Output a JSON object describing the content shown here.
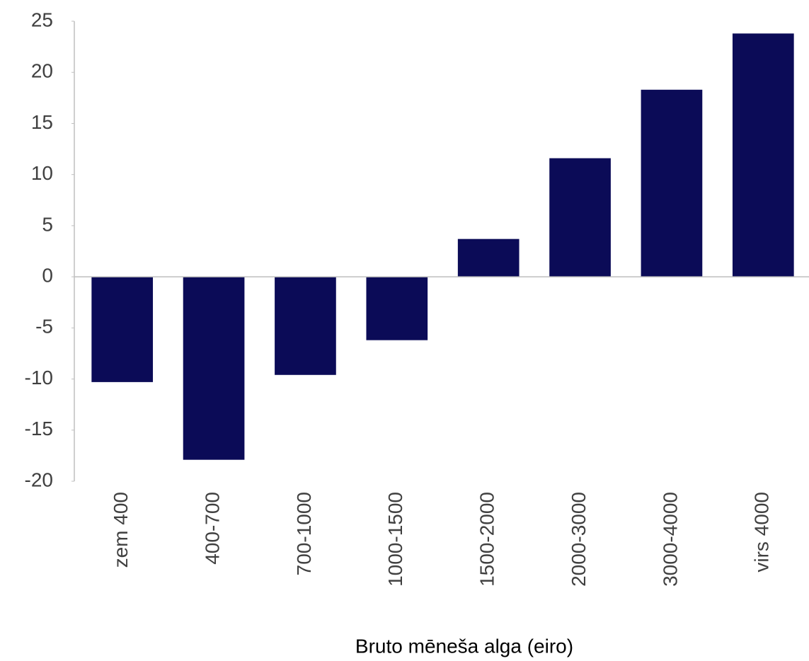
{
  "chart_data": {
    "type": "bar",
    "x_label": "Bruto mēneša alga (eiro)",
    "categories": [
      "zem 400",
      "400-700",
      "700-1000",
      "1000-1500",
      "1500-2000",
      "2000-3000",
      "3000-4000",
      "virs 4000"
    ],
    "values": [
      -10.3,
      -17.9,
      -9.6,
      -6.2,
      3.7,
      11.6,
      18.3,
      23.8
    ],
    "color": "#0b0b57",
    "ylim": [
      -20,
      25
    ],
    "yticks": [
      -20,
      -15,
      -10,
      -5,
      0,
      5,
      10,
      15,
      20,
      25
    ],
    "grid": false
  }
}
